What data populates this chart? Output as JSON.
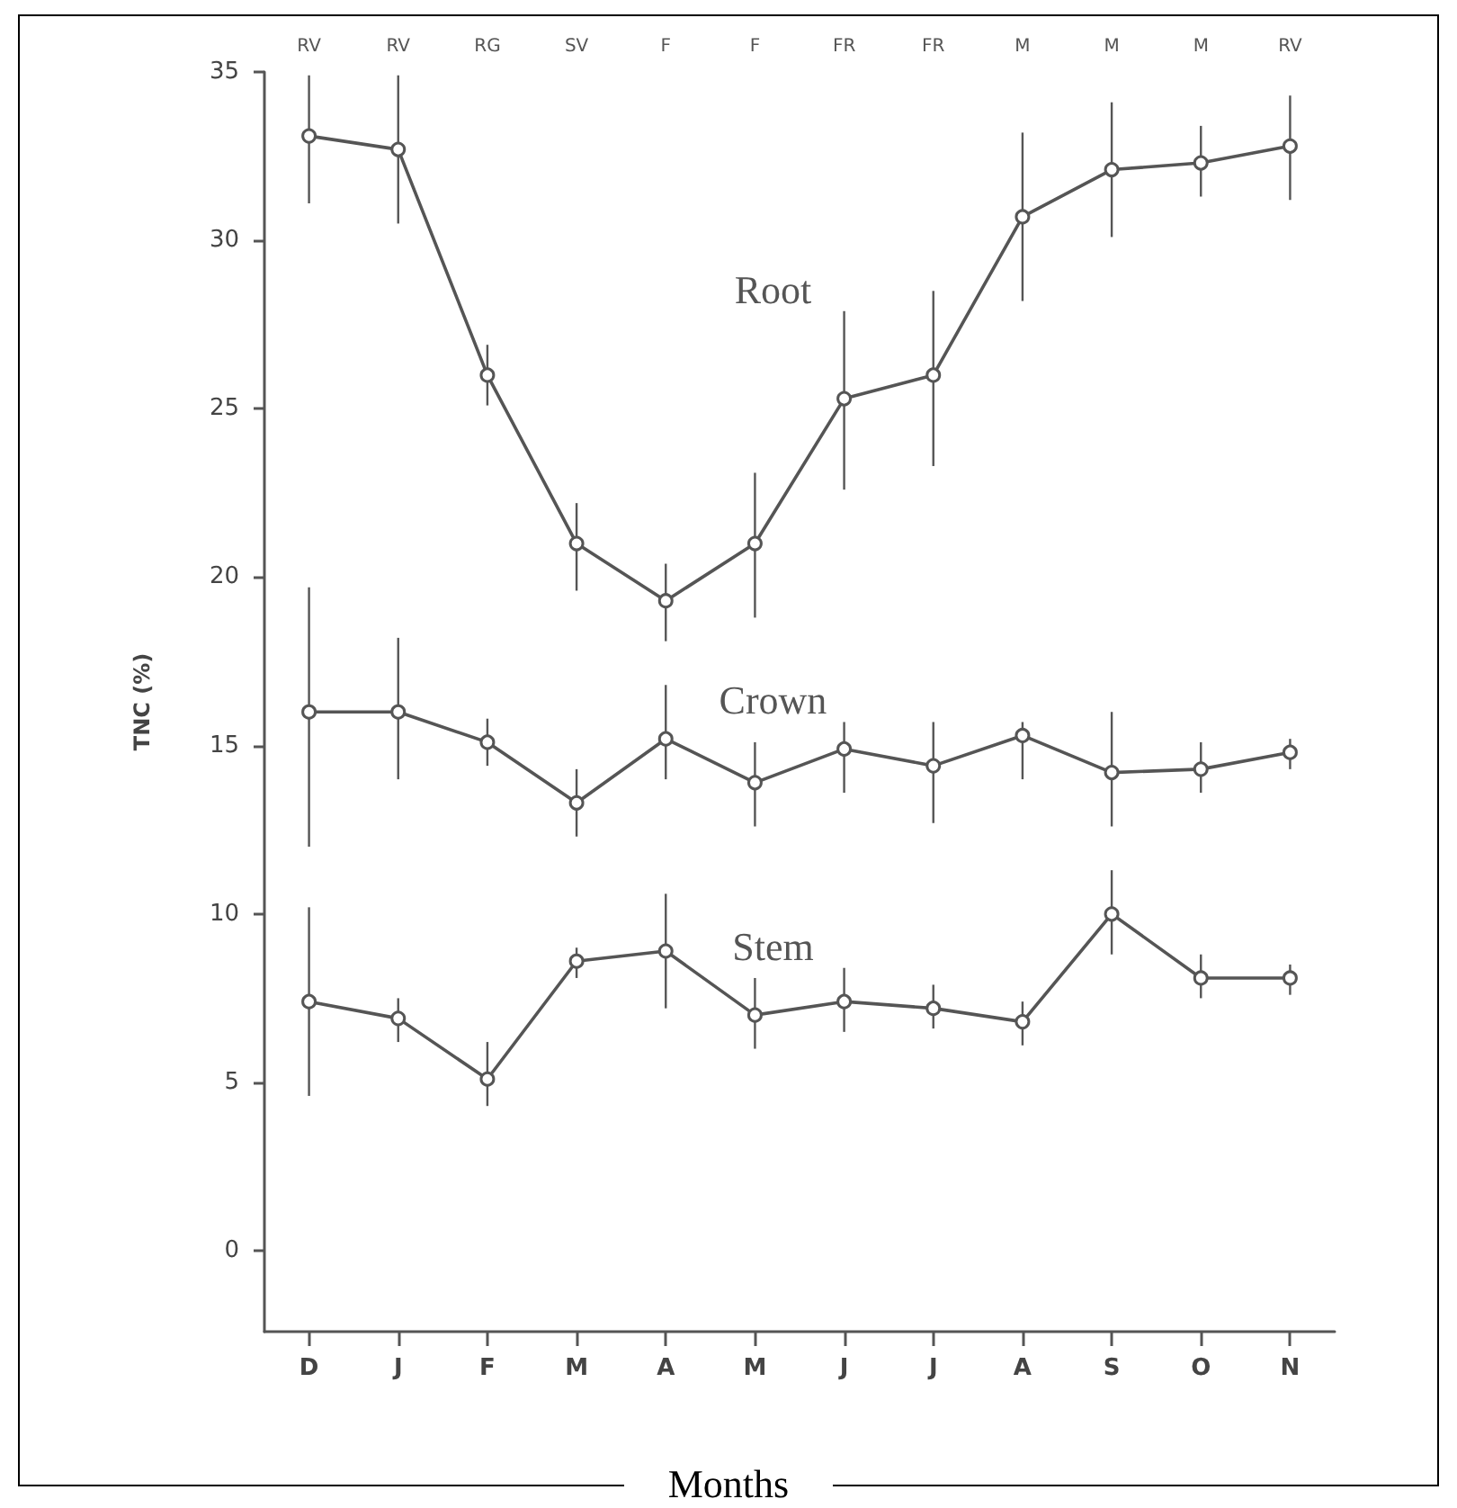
{
  "chart_data": {
    "type": "line",
    "xlabel": "Months",
    "ylabel": "TNC (%)",
    "categories": [
      "D",
      "J",
      "F",
      "M",
      "A",
      "M",
      "J",
      "J",
      "A",
      "S",
      "O",
      "N"
    ],
    "annotations": [
      "RV",
      "RV",
      "RG",
      "SV",
      "F",
      "F",
      "FR",
      "FR",
      "M",
      "M",
      "M",
      "RV"
    ],
    "ylim": [
      -2.4,
      35
    ],
    "yticks": [
      0,
      5,
      10,
      15,
      20,
      25,
      30,
      35
    ],
    "grid": false,
    "legend": false,
    "marker": "circle",
    "line_style": "solid",
    "series": [
      {
        "name": "Root",
        "color": "#555555",
        "values": [
          33.1,
          32.7,
          26.0,
          21.0,
          19.3,
          21.0,
          25.3,
          26.0,
          30.7,
          32.1,
          32.3,
          32.8
        ],
        "errors": [
          [
            31.1,
            34.9
          ],
          [
            30.5,
            34.9
          ],
          [
            25.1,
            26.9
          ],
          [
            19.6,
            22.2
          ],
          [
            18.1,
            20.4
          ],
          [
            18.8,
            23.1
          ],
          [
            22.6,
            27.9
          ],
          [
            23.3,
            28.5
          ],
          [
            28.2,
            33.2
          ],
          [
            30.1,
            34.1
          ],
          [
            31.3,
            33.4
          ],
          [
            31.2,
            34.3
          ]
        ]
      },
      {
        "name": "Crown",
        "color": "#555555",
        "values": [
          16.0,
          16.0,
          15.1,
          13.3,
          15.2,
          13.9,
          14.9,
          14.4,
          15.3,
          14.2,
          14.3,
          14.8
        ],
        "errors": [
          [
            12.0,
            19.7
          ],
          [
            14.0,
            18.2
          ],
          [
            14.4,
            15.8
          ],
          [
            12.3,
            14.3
          ],
          [
            14.0,
            16.8
          ],
          [
            12.6,
            15.1
          ],
          [
            13.6,
            15.7
          ],
          [
            12.7,
            15.7
          ],
          [
            14.0,
            15.7
          ],
          [
            12.6,
            16.0
          ],
          [
            13.6,
            15.1
          ],
          [
            14.3,
            15.2
          ]
        ]
      },
      {
        "name": "Stem",
        "color": "#555555",
        "values": [
          7.4,
          6.9,
          5.1,
          8.6,
          8.9,
          7.0,
          7.4,
          7.2,
          6.8,
          10.0,
          8.1,
          8.1
        ],
        "errors": [
          [
            4.6,
            10.2
          ],
          [
            6.2,
            7.5
          ],
          [
            4.3,
            6.2
          ],
          [
            8.1,
            9.0
          ],
          [
            7.2,
            10.6
          ],
          [
            6.0,
            8.1
          ],
          [
            6.5,
            8.4
          ],
          [
            6.6,
            7.9
          ],
          [
            6.1,
            7.4
          ],
          [
            8.8,
            11.3
          ],
          [
            7.5,
            8.8
          ],
          [
            7.6,
            8.5
          ]
        ]
      }
    ]
  }
}
